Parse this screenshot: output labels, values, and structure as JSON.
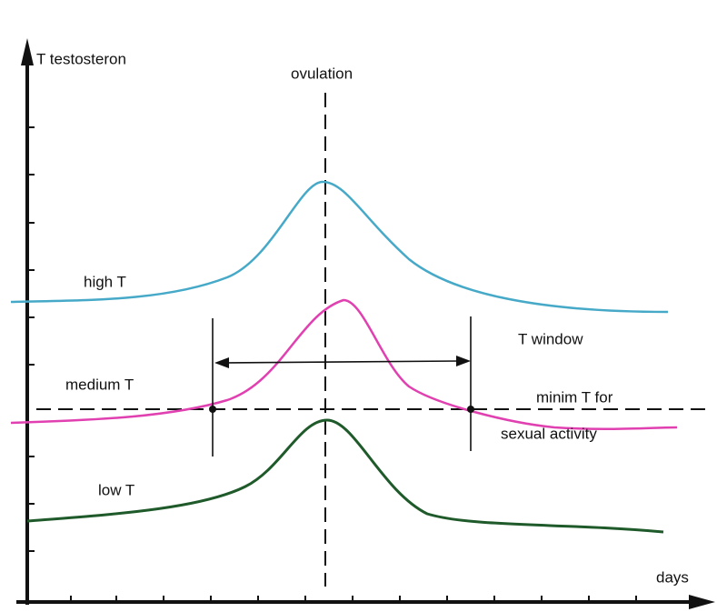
{
  "labels": {
    "y_axis": "T testosteron",
    "ovulation": "ovulation",
    "high": "high  T",
    "medium": "medium  T",
    "low": "low T",
    "window": "T window",
    "minimum": "minim T for",
    "minimum_cont": "sexual activity",
    "x_axis": "days"
  }
}
